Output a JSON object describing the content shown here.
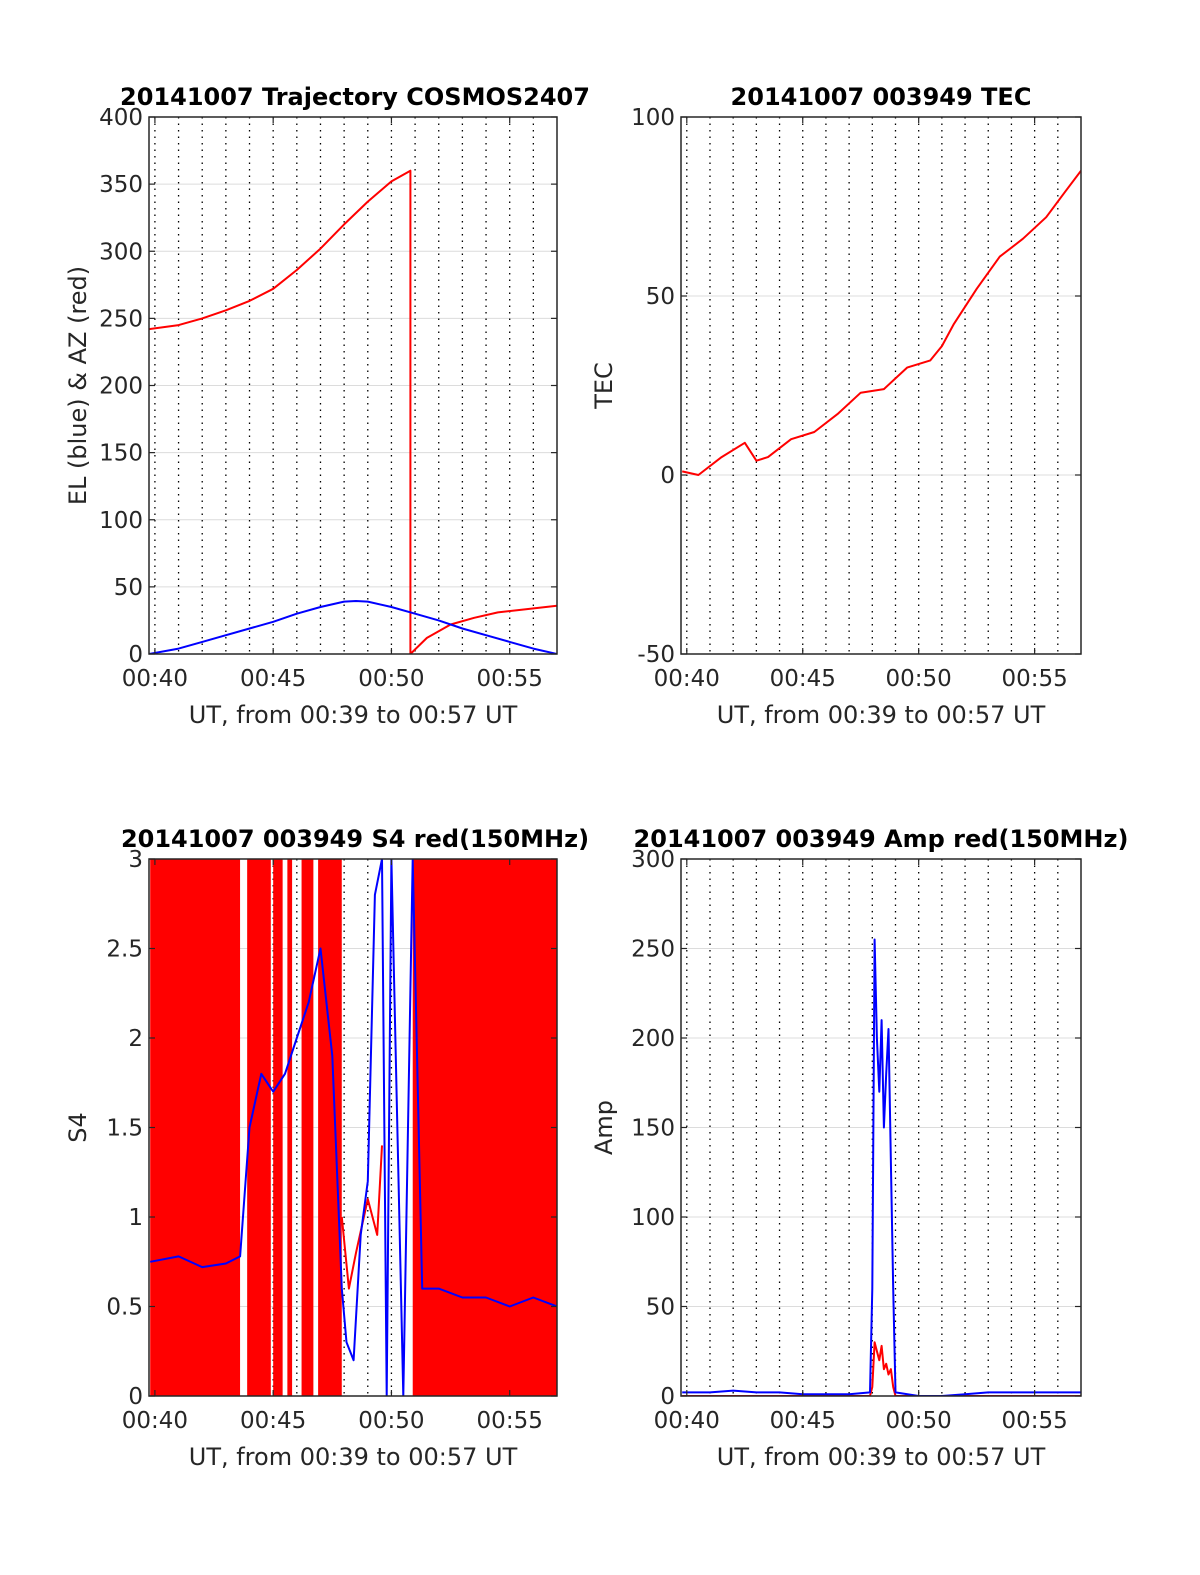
{
  "chart_data": [
    {
      "type": "line",
      "title": "20141007 Trajectory COSMOS2407",
      "xlabel": "UT, from 00:39 to 00:57 UT",
      "ylabel": "EL (blue) & AZ (red)",
      "xlim": [
        39.75,
        57
      ],
      "ylim": [
        0,
        400
      ],
      "xticks": [
        40,
        45,
        50,
        55
      ],
      "xticklabels": [
        "00:40",
        "00:45",
        "00:50",
        "00:55"
      ],
      "yticks": [
        0,
        50,
        100,
        150,
        200,
        250,
        300,
        350,
        400
      ],
      "yticklabels": [
        "0",
        "50",
        "100",
        "150",
        "200",
        "250",
        "300",
        "350",
        "400"
      ],
      "grid": true,
      "series": [
        {
          "color": "#ff0000",
          "x": [
            39.75,
            41,
            42,
            43,
            44,
            45,
            46,
            47,
            48,
            49,
            50,
            50.8,
            50.8,
            51.5,
            52.5,
            53.5,
            54.5,
            55.5,
            57
          ],
          "values": [
            242,
            245,
            250,
            256,
            263,
            272,
            286,
            302,
            320,
            337,
            352,
            360,
            0,
            12,
            22,
            27,
            31,
            33,
            36
          ]
        },
        {
          "color": "#0000ff",
          "x": [
            39.75,
            41,
            42,
            43,
            44,
            45,
            46,
            47,
            48,
            48.5,
            49,
            50,
            51,
            52,
            53,
            54,
            55,
            56,
            57
          ],
          "values": [
            0,
            4,
            9,
            14,
            19,
            24,
            30,
            35,
            39,
            39.5,
            39,
            35,
            30,
            25,
            19,
            14,
            9,
            4,
            0
          ]
        }
      ]
    },
    {
      "type": "line",
      "title": "20141007 003949 TEC",
      "xlabel": "UT, from 00:39 to 00:57 UT",
      "ylabel": "TEC",
      "xlim": [
        39.75,
        57
      ],
      "ylim": [
        -50,
        100
      ],
      "xticks": [
        40,
        45,
        50,
        55
      ],
      "xticklabels": [
        "00:40",
        "00:45",
        "00:50",
        "00:55"
      ],
      "yticks": [
        -50,
        0,
        50,
        100
      ],
      "yticklabels": [
        "-50",
        "0",
        "50",
        "100"
      ],
      "grid": true,
      "series": [
        {
          "color": "#ff0000",
          "x": [
            39.8,
            40.5,
            41.5,
            42.5,
            43.0,
            43.5,
            44.5,
            45.5,
            46.5,
            47.5,
            48.5,
            49.5,
            50.5,
            51.0,
            51.5,
            52.5,
            53.5,
            54.5,
            55.5,
            56.3,
            57.0
          ],
          "values": [
            1,
            0,
            5,
            9,
            4,
            5,
            10,
            12,
            17,
            23,
            24,
            30,
            32,
            36,
            42,
            52,
            61,
            66,
            72,
            79,
            85
          ]
        }
      ]
    },
    {
      "type": "line",
      "title": "20141007 003949 S4 red(150MHz)",
      "xlabel": "UT, from 00:39 to 00:57 UT",
      "ylabel": "S4",
      "xlim": [
        39.75,
        57
      ],
      "ylim": [
        0,
        3
      ],
      "xticks": [
        40,
        45,
        50,
        55
      ],
      "xticklabels": [
        "00:40",
        "00:45",
        "00:50",
        "00:55"
      ],
      "yticks": [
        0,
        0.5,
        1,
        1.5,
        2,
        2.5,
        3
      ],
      "yticklabels": [
        "0",
        "0.5",
        "1",
        "1.5",
        "2",
        "2.5",
        "3"
      ],
      "grid": true,
      "series": [
        {
          "color": "#ff0000",
          "fill_bands": [
            [
              39.8,
              43.6
            ],
            [
              43.9,
              44.9
            ],
            [
              45.0,
              45.4
            ],
            [
              45.6,
              45.8
            ],
            [
              46.2,
              46.7
            ],
            [
              46.9,
              47.9
            ],
            [
              50.9,
              57
            ]
          ],
          "x": [
            47.9,
            48.2,
            48.5,
            49.0,
            49.2,
            49.4,
            49.6
          ],
          "values": [
            1.0,
            0.6,
            0.8,
            1.1,
            1.0,
            0.9,
            1.4
          ]
        },
        {
          "color": "#0000ff",
          "x": [
            39.8,
            41,
            42,
            43,
            43.6,
            44.0,
            44.5,
            45,
            45.5,
            46,
            46.5,
            47,
            47.5,
            47.9,
            48.1,
            48.4,
            48.7,
            49.0,
            49.3,
            49.6,
            49.8,
            50.0,
            50.5,
            50.9,
            51.3,
            52,
            53,
            54,
            55,
            56,
            57
          ],
          "values": [
            0.75,
            0.78,
            0.72,
            0.74,
            0.78,
            1.5,
            1.8,
            1.7,
            1.8,
            2.0,
            2.2,
            2.5,
            1.9,
            0.6,
            0.3,
            0.2,
            0.9,
            1.2,
            2.8,
            3.0,
            0.0,
            3.0,
            0.0,
            3.0,
            0.6,
            0.6,
            0.55,
            0.55,
            0.5,
            0.55,
            0.5
          ]
        }
      ]
    },
    {
      "type": "line",
      "title": "20141007 003949 Amp red(150MHz)",
      "xlabel": "UT, from 00:39 to 00:57 UT",
      "ylabel": "Amp",
      "xlim": [
        39.75,
        57
      ],
      "ylim": [
        0,
        300
      ],
      "xticks": [
        40,
        45,
        50,
        55
      ],
      "xticklabels": [
        "00:40",
        "00:45",
        "00:50",
        "00:55"
      ],
      "yticks": [
        0,
        50,
        100,
        150,
        200,
        250,
        300
      ],
      "yticklabels": [
        "0",
        "50",
        "100",
        "150",
        "200",
        "250",
        "300"
      ],
      "grid": true,
      "series": [
        {
          "color": "#ff0000",
          "x": [
            39.8,
            47.9,
            48.0,
            48.1,
            48.2,
            48.3,
            48.4,
            48.5,
            48.6,
            48.7,
            48.8,
            48.9,
            49.0,
            57.0
          ],
          "values": [
            0,
            0,
            5,
            30,
            25,
            20,
            28,
            15,
            18,
            12,
            15,
            5,
            0,
            0
          ]
        },
        {
          "color": "#0000ff",
          "x": [
            39.8,
            41,
            42,
            43,
            44,
            45,
            46,
            47,
            47.9,
            48.0,
            48.1,
            48.2,
            48.3,
            48.4,
            48.5,
            48.6,
            48.7,
            48.8,
            48.9,
            49.0,
            50,
            51,
            52,
            53,
            54,
            55,
            56,
            57
          ],
          "values": [
            2,
            2,
            3,
            2,
            2,
            1,
            1,
            1,
            2,
            60,
            255,
            200,
            170,
            210,
            150,
            180,
            205,
            130,
            60,
            2,
            0,
            0,
            1,
            2,
            2,
            2,
            2,
            2
          ]
        }
      ]
    }
  ]
}
